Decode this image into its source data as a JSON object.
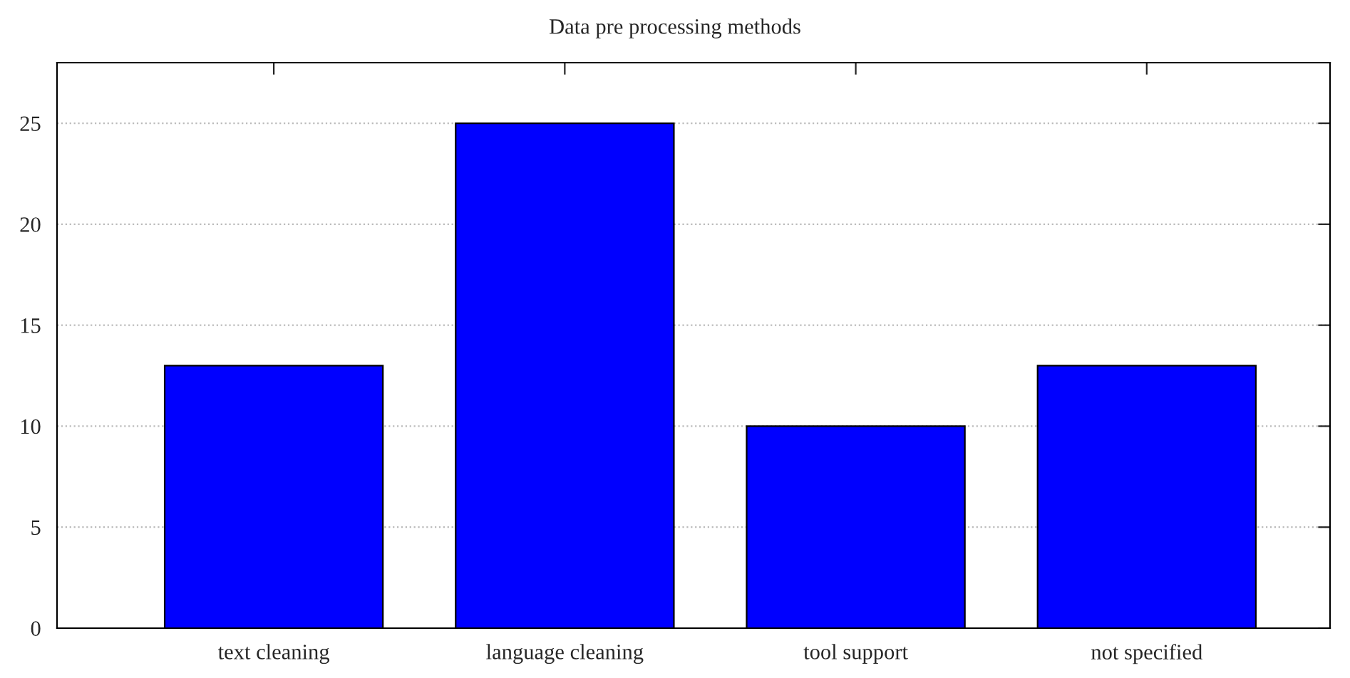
{
  "chart_data": {
    "type": "bar",
    "title": "Data pre processing methods",
    "categories": [
      "text cleaning",
      "language cleaning",
      "tool support",
      "not specified"
    ],
    "values": [
      13,
      25,
      10,
      13
    ],
    "color": "#0000ff",
    "ylim": [
      0,
      28
    ],
    "yticks": [
      0,
      5,
      10,
      15,
      20,
      25
    ],
    "grid": "y",
    "legend": false
  }
}
